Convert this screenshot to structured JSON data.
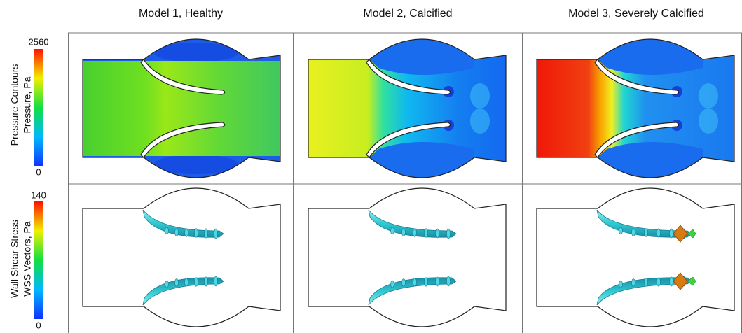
{
  "columns": [
    {
      "title": "Model 1, Healthy"
    },
    {
      "title": "Model 2, Calcified"
    },
    {
      "title": "Model 3,  Severely Calcified"
    }
  ],
  "rows": [
    {
      "label_lines": [
        "Pressure Contours",
        "Pressure, Pa"
      ],
      "scale_max": 2560,
      "scale_min": 0
    },
    {
      "label_lines": [
        "Wall Shear Stress",
        "WSS Vectors, Pa"
      ],
      "scale_max": 140,
      "scale_min": 0
    }
  ]
}
